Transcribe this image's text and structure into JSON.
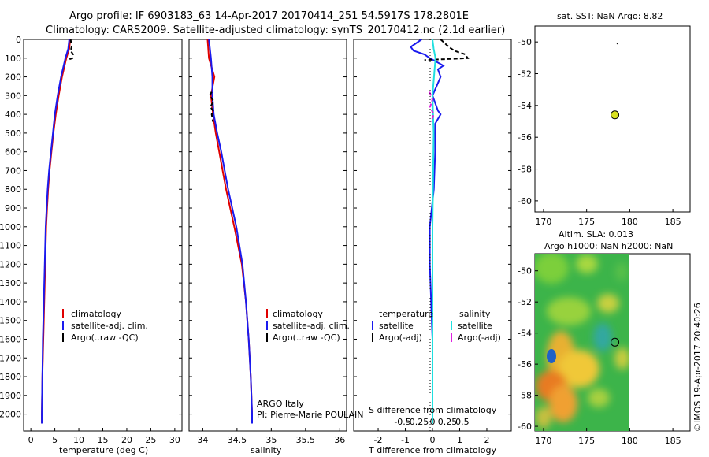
{
  "header": {
    "line1": "Argo profile: IF 6903183_63 14-Apr-2017 20170414_251 54.5917S 178.2801E",
    "line2": "Climatology: CARS2009. Satellite-adjusted climatology: synTS_20170412.nc (2.1d earlier)"
  },
  "colors": {
    "clim": "#e00000",
    "sat": "#1a1aee",
    "argo": "#000000",
    "sat_sal": "#20e0e0",
    "argo_sal": "#e020e0",
    "sst_marker": "#d8e020"
  },
  "chart_data": [
    {
      "type": "line",
      "name": "temperature-profile",
      "xlabel": "temperature (deg C)",
      "ylabel": "",
      "xlim": [
        -1.5,
        31.5
      ],
      "ylim": [
        2090,
        0
      ],
      "xticks": [
        "0",
        "5",
        "10",
        "15",
        "20",
        "25",
        "30"
      ],
      "yticks": [
        "0",
        "100",
        "200",
        "300",
        "400",
        "500",
        "600",
        "700",
        "800",
        "900",
        "1000",
        "1100",
        "1200",
        "1300",
        "1400",
        "1500",
        "1600",
        "1700",
        "1800",
        "1900",
        "2000"
      ],
      "legend": [
        "climatology",
        "satellite-adj. clim.",
        "Argo(..raw -QC)"
      ],
      "series": [
        {
          "name": "climatology",
          "depth": [
            0,
            50,
            100,
            200,
            300,
            400,
            500,
            600,
            700,
            800,
            900,
            1000,
            1200,
            1400,
            1600,
            1800,
            2000,
            2050
          ],
          "values": [
            8.2,
            8.0,
            7.4,
            6.5,
            5.8,
            5.2,
            4.7,
            4.3,
            3.9,
            3.6,
            3.4,
            3.2,
            3.0,
            2.8,
            2.6,
            2.4,
            2.3,
            2.3
          ]
        },
        {
          "name": "satellite-adj. clim.",
          "depth": [
            0,
            50,
            100,
            200,
            300,
            400,
            500,
            600,
            700,
            800,
            900,
            1000,
            1200,
            1400,
            1600,
            1800,
            2000,
            2050
          ],
          "values": [
            8.0,
            7.8,
            7.2,
            6.3,
            5.6,
            5.0,
            4.6,
            4.2,
            3.8,
            3.5,
            3.3,
            3.1,
            2.9,
            2.7,
            2.5,
            2.4,
            2.3,
            2.3
          ]
        },
        {
          "name": "Argo(..raw -QC)",
          "depth": [
            0,
            20,
            40,
            60,
            80,
            100,
            110
          ],
          "values": [
            8.3,
            8.4,
            8.5,
            8.3,
            8.8,
            8.7,
            7.6
          ]
        }
      ]
    },
    {
      "type": "line",
      "name": "salinity-profile",
      "xlabel": "salinity",
      "ylabel": "",
      "xlim": [
        33.8,
        36.1
      ],
      "ylim": [
        2090,
        0
      ],
      "xticks": [
        "34",
        "34.5",
        "35",
        "35.5",
        "36"
      ],
      "legend": [
        "climatology",
        "satellite-adj. clim.",
        "Argo(..raw -QC)"
      ],
      "annotations": [
        "ARGO Italy",
        "PI: Pierre-Marie POULAIN"
      ],
      "series": [
        {
          "name": "climatology",
          "depth": [
            0,
            100,
            200,
            300,
            400,
            500,
            600,
            700,
            800,
            900,
            1000,
            1200,
            1400,
            1600,
            1800,
            2000,
            2050
          ],
          "values": [
            34.07,
            34.09,
            34.17,
            34.12,
            34.15,
            34.19,
            34.24,
            34.29,
            34.34,
            34.4,
            34.46,
            34.57,
            34.63,
            34.67,
            34.7,
            34.72,
            34.72
          ]
        },
        {
          "name": "satellite-adj. clim.",
          "depth": [
            0,
            100,
            200,
            300,
            400,
            500,
            600,
            700,
            800,
            900,
            1000,
            1200,
            1400,
            1600,
            1800,
            2000,
            2050
          ],
          "values": [
            34.09,
            34.12,
            34.14,
            34.14,
            34.16,
            34.21,
            34.27,
            34.32,
            34.37,
            34.43,
            34.49,
            34.58,
            34.63,
            34.67,
            34.7,
            34.72,
            34.72
          ]
        },
        {
          "name": "Argo(..raw -QC)",
          "depth": [
            280,
            300,
            330,
            360,
            380,
            400,
            440
          ],
          "values": [
            34.13,
            34.1,
            34.16,
            34.11,
            34.15,
            34.13,
            34.15
          ]
        }
      ]
    },
    {
      "type": "line",
      "name": "difference-profile",
      "xlabel": "T difference from climatology",
      "xlabel_top": "S difference from climatology",
      "xlim": [
        -2.9,
        2.9
      ],
      "ylim": [
        2090,
        0
      ],
      "xticks_T": [
        "-2",
        "-1",
        "0",
        "1",
        "2"
      ],
      "xticks_S": [
        "-0.5",
        "-0.25",
        "0",
        "0.25",
        "0.5"
      ],
      "legend_titles": [
        "temperature",
        "salinity"
      ],
      "legend": [
        "satellite",
        "Argo(-adj)",
        "satellite",
        "Argo(-adj)"
      ],
      "series": [
        {
          "name": "temperature satellite",
          "depth": [
            0,
            40,
            60,
            80,
            100,
            140,
            160,
            200,
            300,
            380,
            400,
            450,
            600,
            800,
            1000,
            1200,
            1400,
            1600,
            1800,
            2000,
            2050
          ],
          "values": [
            -0.4,
            -0.8,
            -0.7,
            -0.3,
            -0.1,
            0.4,
            0.2,
            0.3,
            0.0,
            0.2,
            0.3,
            0.1,
            0.1,
            0.05,
            -0.1,
            -0.1,
            -0.05,
            0.0,
            0.0,
            0.0,
            0.0
          ]
        },
        {
          "name": "temperature Argo(-adj)",
          "depth": [
            0,
            40,
            60,
            80,
            100,
            110
          ],
          "values": [
            0.3,
            0.6,
            0.8,
            1.2,
            1.3,
            -0.3
          ]
        },
        {
          "name": "salinity satellite",
          "depth": [
            0,
            50,
            100,
            300,
            500,
            1000,
            1500,
            2000,
            2050
          ],
          "values": [
            0.0,
            0.02,
            0.05,
            0.0,
            0.02,
            0.0,
            0.0,
            0.0,
            0.0
          ]
        },
        {
          "name": "salinity Argo(-adj)",
          "depth": [
            280,
            320,
            360,
            400,
            440
          ],
          "values": [
            -0.05,
            0.0,
            -0.04,
            0.02,
            -0.02
          ]
        }
      ]
    },
    {
      "type": "scatter",
      "name": "sat-sst-map",
      "title": "sat. SST: NaN Argo: 8.82",
      "xlim": [
        169,
        187
      ],
      "ylim": [
        -60.7,
        -49
      ],
      "xticks": [
        "170",
        "175",
        "180",
        "185"
      ],
      "yticks": [
        "-50",
        "-52",
        "-54",
        "-56",
        "-58",
        "-60"
      ],
      "points": [
        {
          "x": 178.28,
          "y": -54.59
        }
      ]
    },
    {
      "type": "heatmap",
      "name": "altimetry-map",
      "title1": "Altim. SLA: 0.013",
      "title2": "Argo h1000: NaN h2000: NaN",
      "xlim": [
        169,
        187
      ],
      "ylim": [
        -60.3,
        -48.9
      ],
      "xticks": [
        "170",
        "175",
        "180",
        "185"
      ],
      "yticks": [
        "-50",
        "-52",
        "-54",
        "-56",
        "-58",
        "-60"
      ],
      "data_lon": [
        169,
        180
      ],
      "data_lat": [
        -60,
        -49
      ],
      "points": [
        {
          "x": 178.28,
          "y": -54.59
        }
      ]
    }
  ],
  "footer": {
    "timestamp": "©IMOS 19-Apr-2017 20:40:26"
  }
}
